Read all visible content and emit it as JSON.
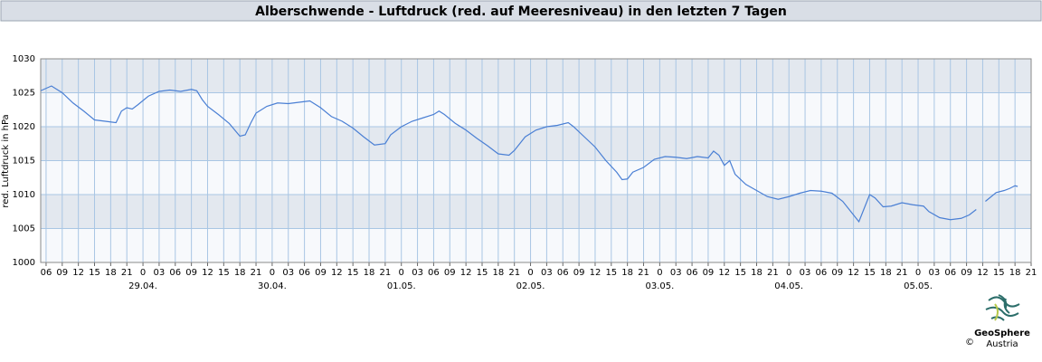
{
  "chart_data": {
    "type": "line",
    "title": "Alberschwende - Luftdruck (red. auf Meeresniveau) in den letzten 7 Tagen",
    "y_label": "red. Luftdruck in hPa",
    "ylim": [
      1000,
      1030
    ],
    "yticks": [
      1000,
      1005,
      1010,
      1015,
      1020,
      1025,
      1030
    ],
    "xlim": [
      5,
      189
    ],
    "xticks": [
      {
        "value": 6,
        "label": "06"
      },
      {
        "value": 9,
        "label": "09"
      },
      {
        "value": 12,
        "label": "12"
      },
      {
        "value": 15,
        "label": "15"
      },
      {
        "value": 18,
        "label": "18"
      },
      {
        "value": 21,
        "label": "21"
      },
      {
        "value": 24,
        "label": "0"
      },
      {
        "value": 27,
        "label": "03"
      },
      {
        "value": 30,
        "label": "06"
      },
      {
        "value": 33,
        "label": "09"
      },
      {
        "value": 36,
        "label": "12"
      },
      {
        "value": 39,
        "label": "15"
      },
      {
        "value": 42,
        "label": "18"
      },
      {
        "value": 45,
        "label": "21"
      },
      {
        "value": 48,
        "label": "0"
      },
      {
        "value": 51,
        "label": "03"
      },
      {
        "value": 54,
        "label": "06"
      },
      {
        "value": 57,
        "label": "09"
      },
      {
        "value": 60,
        "label": "12"
      },
      {
        "value": 63,
        "label": "15"
      },
      {
        "value": 66,
        "label": "18"
      },
      {
        "value": 69,
        "label": "21"
      },
      {
        "value": 72,
        "label": "0"
      },
      {
        "value": 75,
        "label": "03"
      },
      {
        "value": 78,
        "label": "06"
      },
      {
        "value": 81,
        "label": "09"
      },
      {
        "value": 84,
        "label": "12"
      },
      {
        "value": 87,
        "label": "15"
      },
      {
        "value": 90,
        "label": "18"
      },
      {
        "value": 93,
        "label": "21"
      },
      {
        "value": 96,
        "label": "0"
      },
      {
        "value": 99,
        "label": "03"
      },
      {
        "value": 102,
        "label": "06"
      },
      {
        "value": 105,
        "label": "09"
      },
      {
        "value": 108,
        "label": "12"
      },
      {
        "value": 111,
        "label": "15"
      },
      {
        "value": 114,
        "label": "18"
      },
      {
        "value": 117,
        "label": "21"
      },
      {
        "value": 120,
        "label": "0"
      },
      {
        "value": 123,
        "label": "03"
      },
      {
        "value": 126,
        "label": "06"
      },
      {
        "value": 129,
        "label": "09"
      },
      {
        "value": 132,
        "label": "12"
      },
      {
        "value": 135,
        "label": "15"
      },
      {
        "value": 138,
        "label": "18"
      },
      {
        "value": 141,
        "label": "21"
      },
      {
        "value": 144,
        "label": "0"
      },
      {
        "value": 147,
        "label": "03"
      },
      {
        "value": 150,
        "label": "06"
      },
      {
        "value": 153,
        "label": "09"
      },
      {
        "value": 156,
        "label": "12"
      },
      {
        "value": 159,
        "label": "15"
      },
      {
        "value": 162,
        "label": "18"
      },
      {
        "value": 165,
        "label": "21"
      },
      {
        "value": 168,
        "label": "0"
      },
      {
        "value": 171,
        "label": "03"
      },
      {
        "value": 174,
        "label": "06"
      },
      {
        "value": 177,
        "label": "09"
      },
      {
        "value": 180,
        "label": "12"
      },
      {
        "value": 183,
        "label": "15"
      },
      {
        "value": 186,
        "label": "18"
      },
      {
        "value": 189,
        "label": "21"
      }
    ],
    "date_labels": [
      {
        "value": 24,
        "label": "29.04."
      },
      {
        "value": 48,
        "label": "30.04."
      },
      {
        "value": 72,
        "label": "01.05."
      },
      {
        "value": 96,
        "label": "02.05."
      },
      {
        "value": 120,
        "label": "03.05."
      },
      {
        "value": 144,
        "label": "04.05."
      },
      {
        "value": 168,
        "label": "05.05."
      }
    ],
    "grid": true,
    "color": "#4a7fd4",
    "x": [
      5,
      7,
      9,
      11,
      13,
      15,
      17,
      19,
      20,
      21,
      22,
      23,
      25,
      27,
      29,
      31,
      33,
      34,
      35,
      36,
      38,
      40,
      42,
      43,
      44,
      45,
      47,
      49,
      51,
      53,
      55,
      57,
      59,
      61,
      63,
      65,
      67,
      69,
      70,
      72,
      74,
      76,
      78,
      79,
      80,
      82,
      84,
      86,
      88,
      90,
      92,
      93,
      95,
      97,
      99,
      101,
      103,
      104,
      106,
      108,
      110,
      112,
      113,
      114,
      115,
      117,
      119,
      121,
      123,
      125,
      127,
      129,
      130,
      131,
      132,
      133,
      134,
      136,
      138,
      140,
      142,
      144,
      146,
      148,
      150,
      152,
      154,
      155.5,
      157,
      158,
      159,
      160,
      161.5,
      163,
      165,
      167,
      169,
      170,
      172,
      174,
      176,
      177.5,
      178.8,
      179.6,
      180.5,
      182.5,
      184,
      185,
      186,
      186.5
    ],
    "values": [
      1025.3,
      1026.0,
      1025.0,
      1023.5,
      1022.3,
      1021.0,
      1020.8,
      1020.6,
      1022.3,
      1022.8,
      1022.6,
      1023.2,
      1024.5,
      1025.2,
      1025.4,
      1025.2,
      1025.5,
      1025.3,
      1024.0,
      1023.0,
      1021.8,
      1020.5,
      1018.6,
      1018.8,
      1020.5,
      1022.0,
      1023.0,
      1023.5,
      1023.4,
      1023.6,
      1023.8,
      1022.8,
      1021.5,
      1020.8,
      1019.8,
      1018.5,
      1017.3,
      1017.5,
      1018.8,
      1020.0,
      1020.8,
      1021.3,
      1021.8,
      1022.3,
      1021.8,
      1020.5,
      1019.5,
      1018.3,
      1017.2,
      1016.0,
      1015.8,
      1016.5,
      1018.5,
      1019.5,
      1020.0,
      1020.2,
      1020.6,
      1020.0,
      1018.5,
      1017.0,
      1015.0,
      1013.3,
      1012.2,
      1012.3,
      1013.3,
      1014.0,
      1015.2,
      1015.6,
      1015.5,
      1015.3,
      1015.6,
      1015.4,
      1016.4,
      1015.8,
      1014.3,
      1015.0,
      1013.0,
      1011.5,
      1010.6,
      1009.7,
      1009.3,
      1009.7,
      1010.2,
      1010.6,
      1010.5,
      1010.2,
      1009.0,
      1007.5,
      1006.0,
      1008.0,
      1010.0,
      1009.5,
      1008.2,
      1008.3,
      1008.8,
      1008.5,
      1008.3,
      1007.5,
      1006.6,
      1006.3,
      1006.5,
      1007.0,
      1007.8,
      null,
      1009.0,
      1010.3,
      1010.6,
      1010.9,
      1011.3,
      1011.2
    ]
  },
  "logo": {
    "name": "GeoSphere",
    "sub": "Austria",
    "copyright": "©"
  }
}
